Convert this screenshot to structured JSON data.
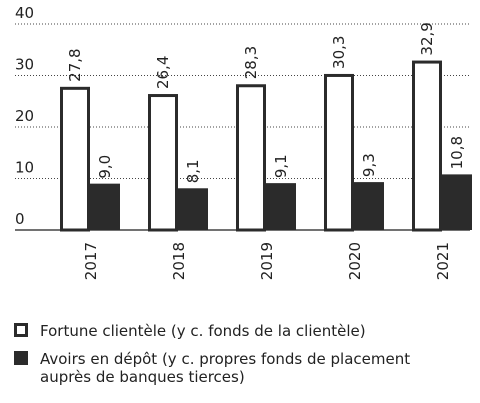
{
  "chart_data": {
    "type": "bar",
    "categories": [
      "2017",
      "2018",
      "2019",
      "2020",
      "2021"
    ],
    "series": [
      {
        "name": "Fortune clientèle (y c. fonds de la clientèle)",
        "color": "#ffffff",
        "values": [
          27.8,
          26.4,
          28.3,
          30.3,
          32.9
        ],
        "value_labels": [
          "27,8",
          "26,4",
          "28,3",
          "30,3",
          "32,9"
        ]
      },
      {
        "name": "Avoirs en dépôt (y c. propres fonds de placement auprès de banques tierces)",
        "color": "#2b2b2b",
        "values": [
          9.0,
          8.1,
          9.1,
          9.3,
          10.8
        ],
        "value_labels": [
          "9,0",
          "8,1",
          "9,1",
          "9,3",
          "10,8"
        ]
      }
    ],
    "ylim": [
      0,
      40
    ],
    "yticks": [
      0,
      10,
      20,
      30,
      40
    ],
    "grid": true
  }
}
